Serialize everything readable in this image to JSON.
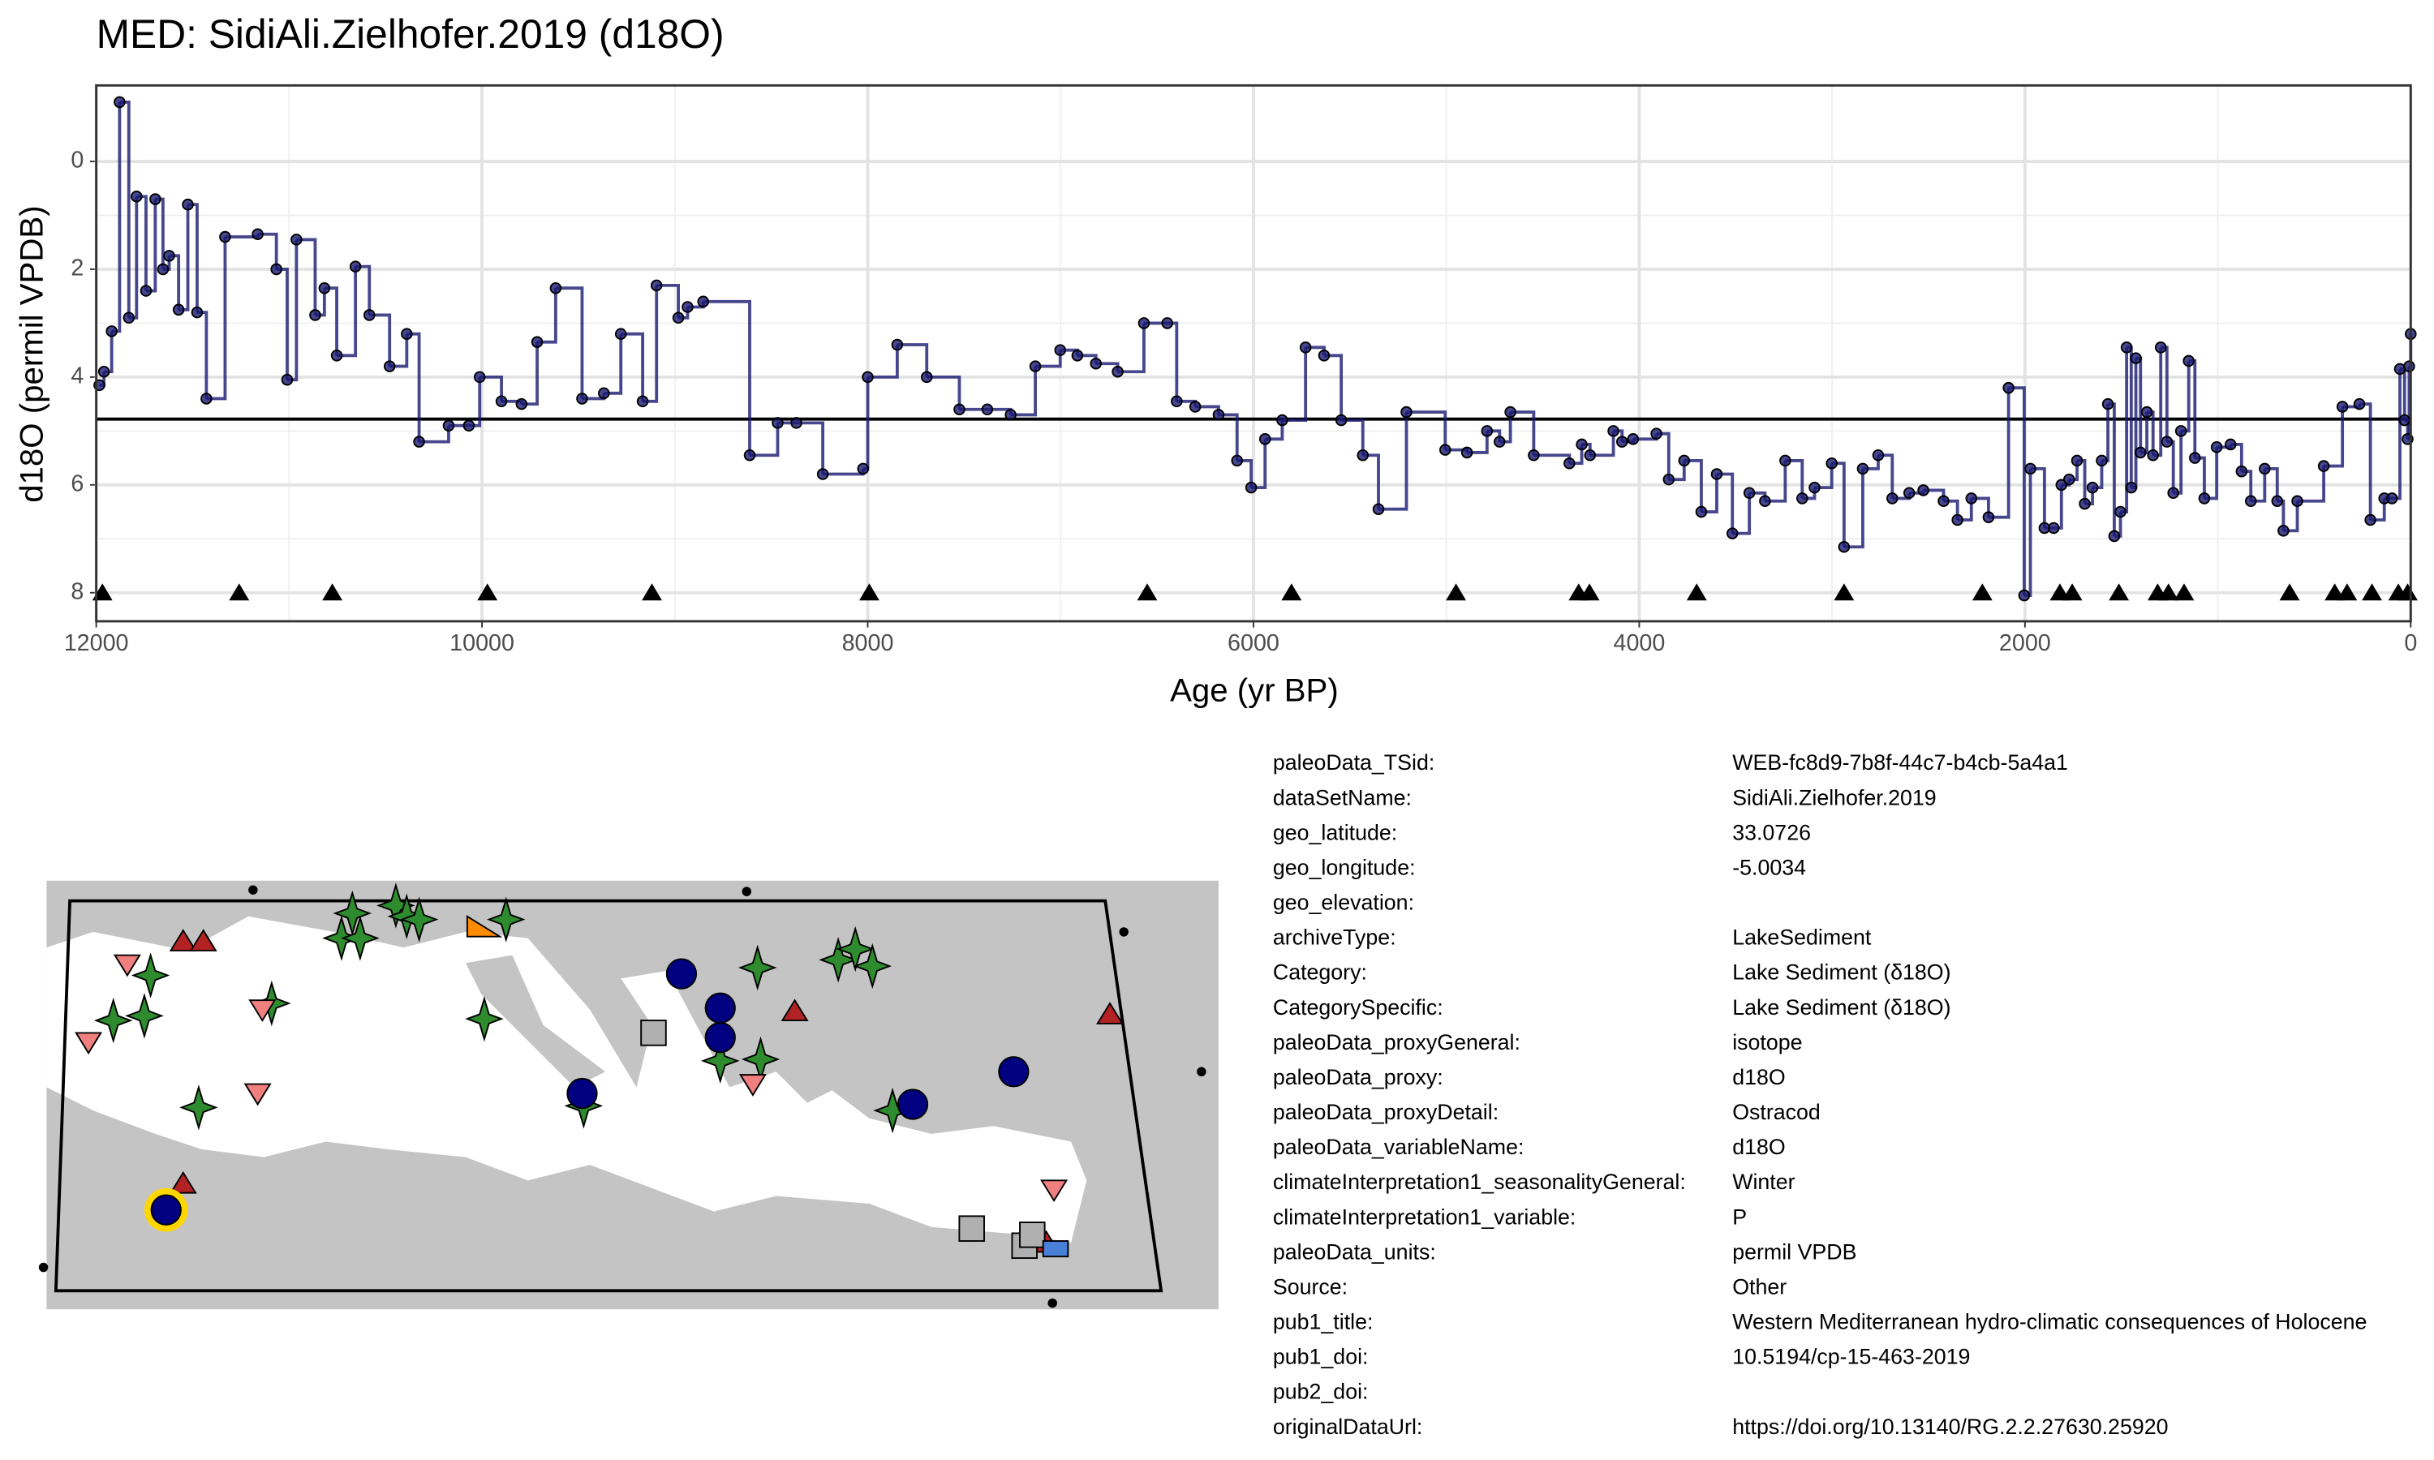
{
  "chart_data": {
    "type": "step",
    "title": "MED: SidiAli.Zielhofer.2019 (d18O)",
    "x_label": "Age (yr BP)",
    "y_label": "d18O (permil VPDB)",
    "xlim": [
      12000,
      0
    ],
    "xticks": [
      12000,
      10000,
      8000,
      6000,
      4000,
      2000,
      0
    ],
    "ylim": [
      -1.41,
      8.53
    ],
    "yticks": [
      0,
      2,
      4,
      6,
      8
    ],
    "reverse_y": true,
    "grid": true,
    "mean": 4.78,
    "x": [
      11984,
      11960,
      11920,
      11879,
      11831,
      11791,
      11742,
      11694,
      11654,
      11622,
      11573,
      11525,
      11477,
      11429,
      11332,
      11163,
      11066,
      11010,
      10962,
      10865,
      10817,
      10753,
      10656,
      10584,
      10479,
      10390,
      10326,
      10173,
      10068,
      10012,
      9899,
      9795,
      9714,
      9618,
      9481,
      9368,
      9280,
      9167,
      9095,
      8982,
      8934,
      8853,
      8612,
      8467,
      8370,
      8233,
      8024,
      8000,
      7847,
      7694,
      7525,
      7380,
      7259,
      7131,
      7002,
      6913,
      6817,
      6704,
      6568,
      6447,
      6398,
      6302,
      6181,
      6085,
      6012,
      5940,
      5851,
      5730,
      5634,
      5545,
      5433,
      5352,
      5207,
      5006,
      4893,
      4789,
      4724,
      4668,
      4547,
      4362,
      4298,
      4255,
      4134,
      4089,
      4032,
      3911,
      3847,
      3767,
      3678,
      3598,
      3517,
      3429,
      3348,
      3243,
      3155,
      3091,
      3002,
      2938,
      2841,
      2761,
      2688,
      2600,
      2527,
      2422,
      2350,
      2278,
      2189,
      2085,
      2004,
      1972,
      1899,
      1851,
      1811,
      1771,
      1730,
      1690,
      1650,
      1602,
      1570,
      1537,
      1505,
      1473,
      1449,
      1425,
      1401,
      1368,
      1336,
      1296,
      1264,
      1231,
      1191,
      1151,
      1119,
      1070,
      1006,
      934,
      877,
      829,
      757,
      692,
      660,
      588,
      451,
      354,
      266,
      209,
      137,
      97,
      56,
      32,
      16,
      8,
      0
    ],
    "series": [
      {
        "color": "#191970",
        "values": [
          4.15,
          3.9,
          3.15,
          -1.1,
          2.9,
          0.65,
          2.4,
          0.7,
          2.0,
          1.75,
          2.75,
          0.8,
          2.8,
          4.4,
          1.4,
          1.35,
          2.0,
          4.05,
          1.45,
          2.85,
          2.35,
          3.6,
          1.95,
          2.85,
          3.8,
          3.2,
          5.2,
          4.9,
          4.9,
          4.0,
          4.45,
          4.5,
          3.35,
          2.35,
          4.4,
          4.3,
          3.2,
          4.45,
          2.3,
          2.9,
          2.7,
          2.6,
          5.45,
          4.85,
          4.85,
          5.8,
          5.7,
          4.0,
          3.4,
          4.0,
          4.6,
          4.6,
          4.7,
          3.8,
          3.5,
          3.6,
          3.75,
          3.9,
          3.0,
          3.0,
          4.45,
          4.55,
          4.7,
          5.55,
          6.05,
          5.15,
          4.8,
          3.45,
          3.6,
          4.8,
          5.45,
          6.45,
          4.65,
          5.35,
          5.4,
          5.0,
          5.2,
          4.65,
          5.45,
          5.6,
          5.25,
          5.45,
          5.0,
          5.2,
          5.15,
          5.05,
          5.9,
          5.55,
          6.5,
          5.8,
          6.9,
          6.15,
          6.3,
          5.55,
          6.25,
          6.05,
          5.6,
          7.15,
          5.7,
          5.45,
          6.25,
          6.15,
          6.1,
          6.3,
          6.65,
          6.25,
          6.6,
          4.2,
          8.05,
          5.7,
          6.8,
          6.8,
          6.0,
          5.9,
          5.55,
          6.35,
          6.05,
          5.55,
          4.5,
          6.95,
          6.5,
          3.45,
          6.05,
          3.65,
          5.4,
          4.65,
          5.45,
          3.45,
          5.2,
          6.15,
          5.0,
          3.7,
          5.5,
          6.25,
          5.3,
          5.25,
          5.75,
          6.3,
          5.7,
          6.3,
          6.85,
          6.3,
          5.65,
          4.55,
          4.5,
          6.65,
          6.25,
          6.25,
          3.85,
          4.8,
          5.15,
          3.8,
          3.2
        ]
      }
    ],
    "markers": {
      "y": 8,
      "x": [
        11968,
        11259,
        10776,
        9972,
        9119,
        7992,
        6551,
        5803,
        4950,
        4314,
        4258,
        3702,
        2938,
        2221,
        1819,
        1755,
        1513,
        1312,
        1256,
        1175,
        628,
        394,
        330,
        201,
        64,
        16
      ]
    }
  },
  "metadata": {
    "rows": [
      [
        "paleoData_TSid:",
        "WEB-fc8d9-7b8f-44c7-b4cb-5a4a1"
      ],
      [
        "dataSetName:",
        "SidiAli.Zielhofer.2019"
      ],
      [
        "geo_latitude:",
        "33.0726"
      ],
      [
        "geo_longitude:",
        "-5.0034"
      ],
      [
        "geo_elevation:"
      ],
      [
        "archiveType:",
        "LakeSediment"
      ],
      [
        "Category:",
        "Lake Sediment (δ18O)"
      ],
      [
        "CategorySpecific:",
        "Lake Sediment (δ18O)"
      ],
      [
        "paleoData_proxyGeneral:",
        "isotope"
      ],
      [
        "paleoData_proxy:",
        "d18O"
      ],
      [
        "paleoData_proxyDetail:",
        "Ostracod"
      ],
      [
        "paleoData_variableName:",
        "d18O"
      ],
      [
        "climateInterpretation1_seasonalityGeneral:",
        "Winter"
      ],
      [
        "climateInterpretation1_variable:",
        "P"
      ],
      [
        "paleoData_units:",
        "permil VPDB"
      ],
      [
        "Source:",
        "Other"
      ],
      [
        "pub1_title:",
        "Western Mediterranean hydro-climatic consequences of Holocene"
      ],
      [
        "pub1_doi:",
        "10.5194/cp-15-463-2019"
      ],
      [
        "pub2_doi:"
      ],
      [
        "originalDataUrl:",
        "https://doi.org/10.13140/RG.2.2.27630.25920"
      ]
    ]
  }
}
